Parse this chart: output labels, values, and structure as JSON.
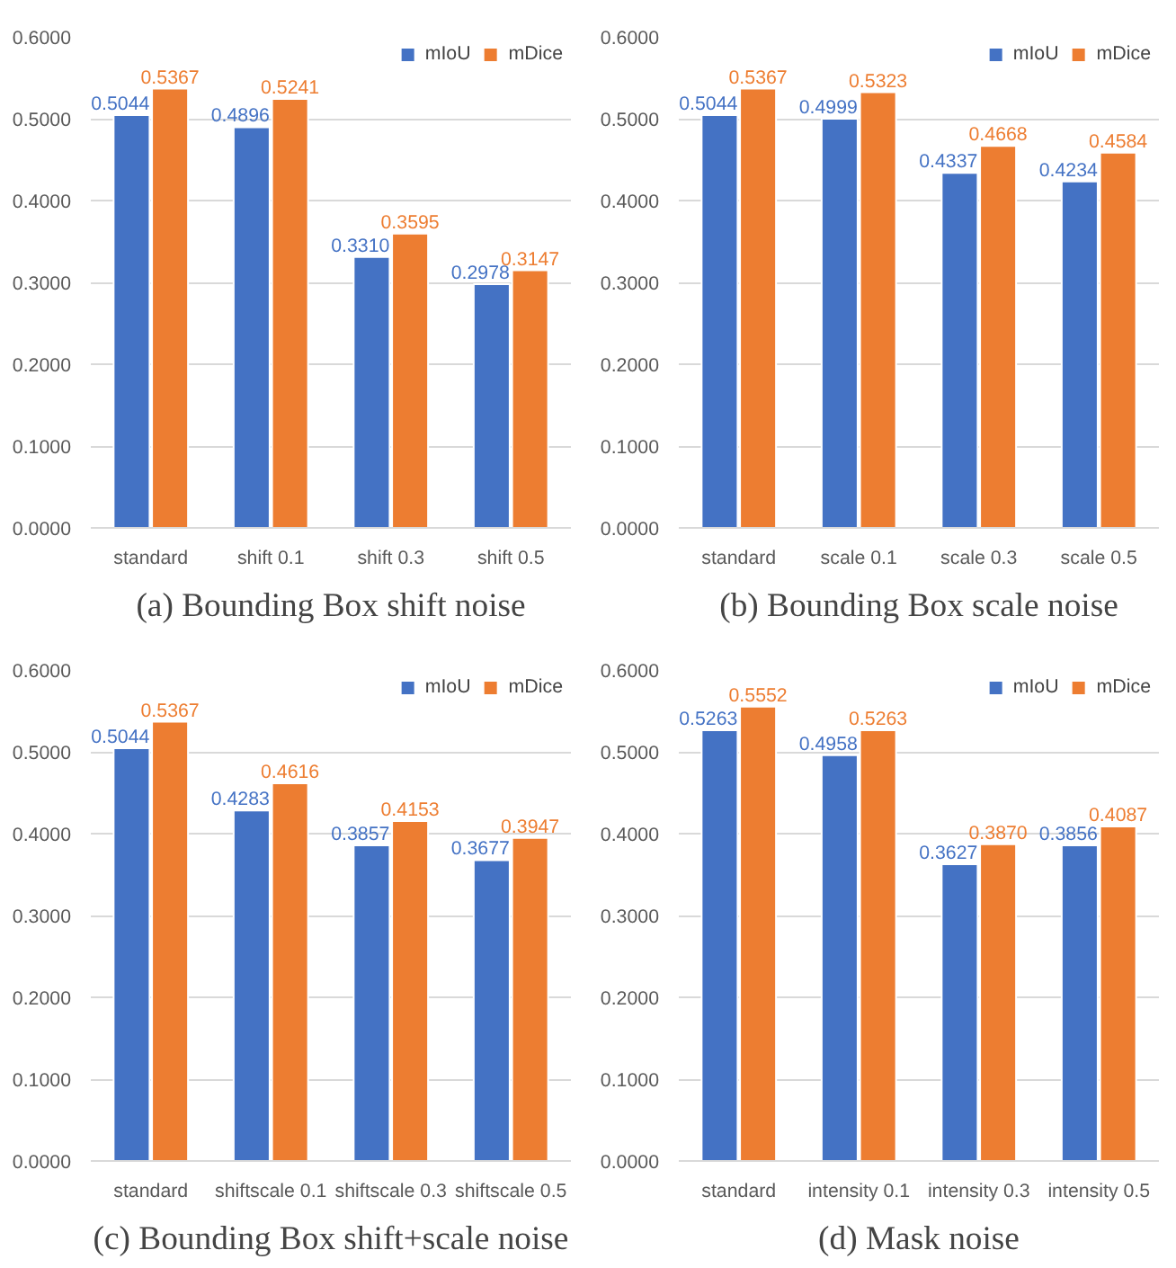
{
  "chart_data": [
    {
      "type": "bar",
      "title": "(a) Bounding Box shift noise",
      "categories": [
        "standard",
        "shift 0.1",
        "shift 0.3",
        "shift 0.5"
      ],
      "series": [
        {
          "name": "mIoU",
          "color": "#4472c4",
          "values": [
            0.5044,
            0.4896,
            0.331,
            0.2978
          ],
          "value_labels": [
            "0.5044",
            "0.4896",
            "0.3310",
            "0.2978"
          ]
        },
        {
          "name": "mDice",
          "color": "#ed7d31",
          "values": [
            0.5367,
            0.5241,
            0.3595,
            0.3147
          ],
          "value_labels": [
            "0.5367",
            "0.5241",
            "0.3595",
            "0.3147"
          ]
        }
      ],
      "ylim": [
        0,
        0.6
      ],
      "yticks": [
        {
          "value": 0,
          "label": "0.0000"
        },
        {
          "value": 0.1,
          "label": "0.1000"
        },
        {
          "value": 0.2,
          "label": "0.2000"
        },
        {
          "value": 0.3,
          "label": "0.3000"
        },
        {
          "value": 0.4,
          "label": "0.4000"
        },
        {
          "value": 0.5,
          "label": "0.5000"
        },
        {
          "value": 0.6,
          "label": "0.6000"
        }
      ],
      "grid": "y",
      "legend": "top right"
    },
    {
      "type": "bar",
      "title": "(b) Bounding Box scale noise",
      "categories": [
        "standard",
        "scale 0.1",
        "scale 0.3",
        "scale 0.5"
      ],
      "series": [
        {
          "name": "mIoU",
          "color": "#4472c4",
          "values": [
            0.5044,
            0.4999,
            0.4337,
            0.4234
          ],
          "value_labels": [
            "0.5044",
            "0.4999",
            "0.4337",
            "0.4234"
          ]
        },
        {
          "name": "mDice",
          "color": "#ed7d31",
          "values": [
            0.5367,
            0.5323,
            0.4668,
            0.4584
          ],
          "value_labels": [
            "0.5367",
            "0.5323",
            "0.4668",
            "0.4584"
          ]
        }
      ],
      "ylim": [
        0,
        0.6
      ],
      "yticks": [
        {
          "value": 0,
          "label": "0.0000"
        },
        {
          "value": 0.1,
          "label": "0.1000"
        },
        {
          "value": 0.2,
          "label": "0.2000"
        },
        {
          "value": 0.3,
          "label": "0.3000"
        },
        {
          "value": 0.4,
          "label": "0.4000"
        },
        {
          "value": 0.5,
          "label": "0.5000"
        },
        {
          "value": 0.6,
          "label": "0.6000"
        }
      ],
      "grid": "y",
      "legend": "top right"
    },
    {
      "type": "bar",
      "title": "(c) Bounding Box shift+scale noise",
      "categories": [
        "standard",
        "shiftscale 0.1",
        "shiftscale 0.3",
        "shiftscale 0.5"
      ],
      "series": [
        {
          "name": "mIoU",
          "color": "#4472c4",
          "values": [
            0.5044,
            0.4283,
            0.3857,
            0.3677
          ],
          "value_labels": [
            "0.5044",
            "0.4283",
            "0.3857",
            "0.3677"
          ]
        },
        {
          "name": "mDice",
          "color": "#ed7d31",
          "values": [
            0.5367,
            0.4616,
            0.4153,
            0.3947
          ],
          "value_labels": [
            "0.5367",
            "0.4616",
            "0.4153",
            "0.3947"
          ]
        }
      ],
      "ylim": [
        0,
        0.6
      ],
      "yticks": [
        {
          "value": 0,
          "label": "0.0000"
        },
        {
          "value": 0.1,
          "label": "0.1000"
        },
        {
          "value": 0.2,
          "label": "0.2000"
        },
        {
          "value": 0.3,
          "label": "0.3000"
        },
        {
          "value": 0.4,
          "label": "0.4000"
        },
        {
          "value": 0.5,
          "label": "0.5000"
        },
        {
          "value": 0.6,
          "label": "0.6000"
        }
      ],
      "grid": "y",
      "legend": "top right"
    },
    {
      "type": "bar",
      "title": "(d) Mask noise",
      "categories": [
        "standard",
        "intensity 0.1",
        "intensity 0.3",
        "intensity 0.5"
      ],
      "series": [
        {
          "name": "mIoU",
          "color": "#4472c4",
          "values": [
            0.5263,
            0.4958,
            0.3627,
            0.3856
          ],
          "value_labels": [
            "0.5263",
            "0.4958",
            "0.3627",
            "0.3856"
          ]
        },
        {
          "name": "mDice",
          "color": "#ed7d31",
          "values": [
            0.5552,
            0.5263,
            0.387,
            0.4087
          ],
          "value_labels": [
            "0.5552",
            "0.5263",
            "0.3870",
            "0.4087"
          ]
        }
      ],
      "ylim": [
        0,
        0.6
      ],
      "yticks": [
        {
          "value": 0,
          "label": "0.0000"
        },
        {
          "value": 0.1,
          "label": "0.1000"
        },
        {
          "value": 0.2,
          "label": "0.2000"
        },
        {
          "value": 0.3,
          "label": "0.3000"
        },
        {
          "value": 0.4,
          "label": "0.4000"
        },
        {
          "value": 0.5,
          "label": "0.5000"
        },
        {
          "value": 0.6,
          "label": "0.6000"
        }
      ],
      "grid": "y",
      "legend": "top right"
    }
  ]
}
